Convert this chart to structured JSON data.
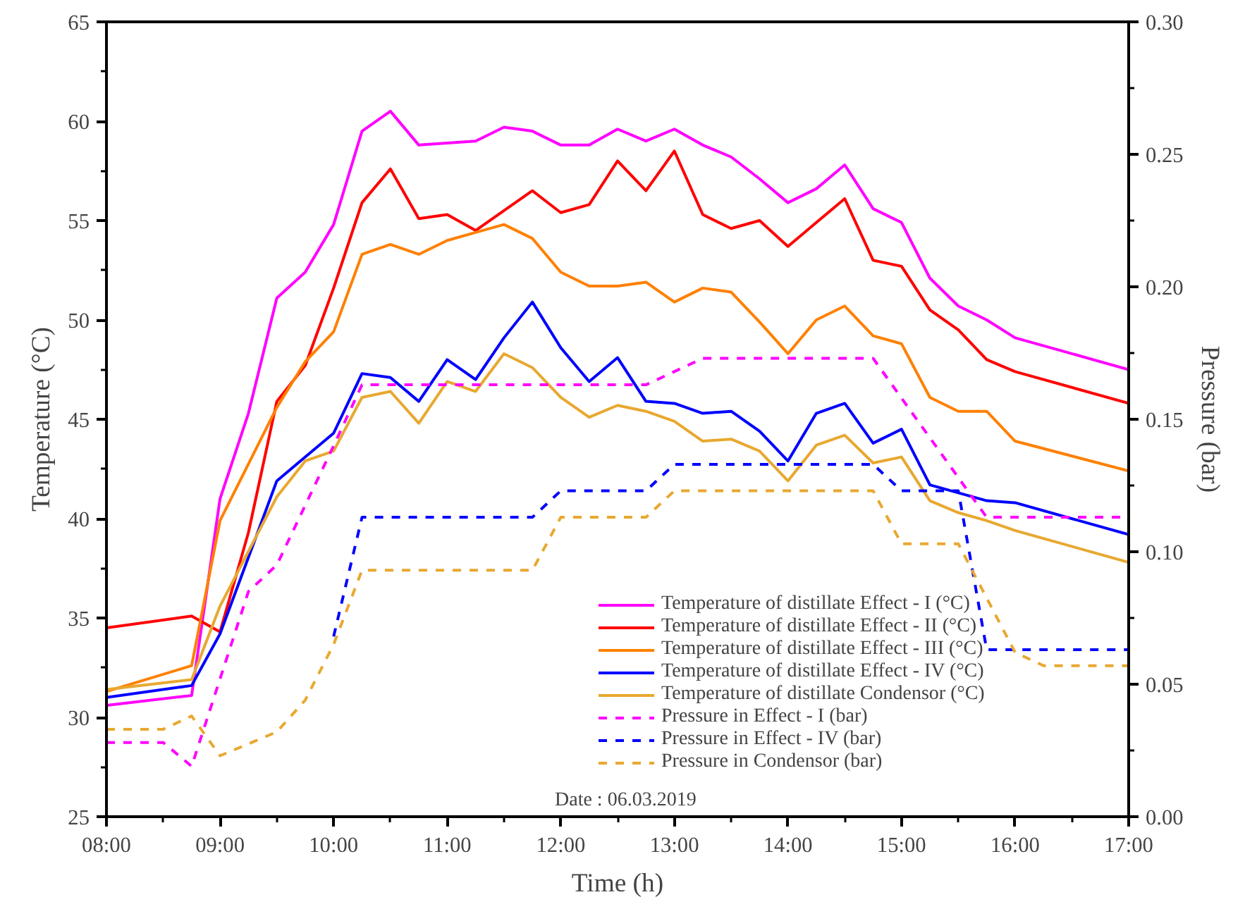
{
  "chart_data": {
    "type": "line",
    "xlabel": "Time (h)",
    "ylabel": "Temperature (°C)",
    "y2label": "Pressure (bar)",
    "xlim": [
      8,
      17
    ],
    "xticks": [
      {
        "value": 8,
        "label": "08:00"
      },
      {
        "value": 9,
        "label": "09:00"
      },
      {
        "value": 10,
        "label": "10:00"
      },
      {
        "value": 11,
        "label": "11:00"
      },
      {
        "value": 12,
        "label": "12:00"
      },
      {
        "value": 13,
        "label": "13:00"
      },
      {
        "value": 14,
        "label": "14:00"
      },
      {
        "value": 15,
        "label": "15:00"
      },
      {
        "value": 16,
        "label": "16:00"
      },
      {
        "value": 17,
        "label": "17:00"
      }
    ],
    "ylim": [
      25,
      65
    ],
    "yticks": [
      25,
      30,
      35,
      40,
      45,
      50,
      55,
      60,
      65
    ],
    "y2lim": [
      0,
      0.3
    ],
    "y2ticks": [
      {
        "value": 0,
        "label": "0.00"
      },
      {
        "value": 0.05,
        "label": "0.05"
      },
      {
        "value": 0.1,
        "label": "0.10"
      },
      {
        "value": 0.15,
        "label": "0.15"
      },
      {
        "value": 0.2,
        "label": "0.20"
      },
      {
        "value": 0.25,
        "label": "0.25"
      },
      {
        "value": 0.3,
        "label": "0.30"
      }
    ],
    "grid": false,
    "legend": "bottom right",
    "marker": "none",
    "annotations": [
      "Date : 06.03.2019"
    ],
    "series": [
      {
        "name": "Temperature of distillate Effect - I (°C)",
        "color": "#ff00ff",
        "line_style": "solid",
        "x": [
          8,
          8.75,
          9,
          9.25,
          9.5,
          9.75,
          10,
          10.25,
          10.5,
          10.75,
          11,
          11.25,
          11.5,
          11.75,
          12,
          12.25,
          12.5,
          12.75,
          13,
          13.25,
          13.5,
          13.75,
          14,
          14.25,
          14.5,
          14.75,
          15,
          15.25,
          15.5,
          15.75,
          16,
          17
        ],
        "values": [
          30.6,
          31.1,
          41,
          45.3,
          51.1,
          52.4,
          54.8,
          59.5,
          60.5,
          58.8,
          58.9,
          59.0,
          59.7,
          59.5,
          58.8,
          58.8,
          59.6,
          59.0,
          59.6,
          58.8,
          58.2,
          57.1,
          55.9,
          56.6,
          57.8,
          55.6,
          54.9,
          52.1,
          50.7,
          50.0,
          49.1,
          47.5
        ]
      },
      {
        "name": "Temperature of distillate Effect - II (°C)",
        "color": "#ff0000",
        "line_style": "solid",
        "x": [
          8,
          8.75,
          9,
          9.25,
          9.5,
          9.75,
          10,
          10.25,
          10.5,
          10.75,
          11,
          11.25,
          11.5,
          11.75,
          12,
          12.25,
          12.5,
          12.75,
          13,
          13.25,
          13.5,
          13.75,
          14,
          14.25,
          14.5,
          14.75,
          15,
          15.25,
          15.5,
          15.75,
          16,
          17
        ],
        "values": [
          34.5,
          35.1,
          34.3,
          39.3,
          45.9,
          47.7,
          51.6,
          55.9,
          57.6,
          55.1,
          55.3,
          54.5,
          55.5,
          56.5,
          55.4,
          55.8,
          58.0,
          56.5,
          58.5,
          55.3,
          54.6,
          55.0,
          53.7,
          54.9,
          56.1,
          53.0,
          52.7,
          50.5,
          49.5,
          48.0,
          47.4,
          45.8
        ]
      },
      {
        "name": "Temperature of distillate Effect - III (°C)",
        "color": "#ff8000",
        "line_style": "solid",
        "x": [
          8,
          8.75,
          9,
          9.5,
          9.75,
          10,
          10.25,
          10.5,
          10.75,
          11,
          11.25,
          11.5,
          11.75,
          12,
          12.25,
          12.5,
          12.75,
          13,
          13.25,
          13.5,
          13.75,
          14,
          14.25,
          14.5,
          14.75,
          15,
          15.25,
          15.5,
          15.75,
          16,
          17
        ],
        "values": [
          31.3,
          32.6,
          39.9,
          45.6,
          47.9,
          49.4,
          53.3,
          53.8,
          53.3,
          54.0,
          54.4,
          54.8,
          54.1,
          52.4,
          51.7,
          51.7,
          51.9,
          50.9,
          51.6,
          51.4,
          49.9,
          48.3,
          50.0,
          50.7,
          49.2,
          48.8,
          46.1,
          45.4,
          45.4,
          43.9,
          42.4
        ]
      },
      {
        "name": "Temperature of distillate Effect - IV (°C)",
        "color": "#0000ff",
        "line_style": "solid",
        "x": [
          8,
          8.75,
          9,
          9.5,
          9.75,
          10,
          10.25,
          10.5,
          10.75,
          11,
          11.25,
          11.5,
          11.75,
          12,
          12.25,
          12.5,
          12.75,
          13,
          13.25,
          13.5,
          13.75,
          14,
          14.25,
          14.5,
          14.75,
          15,
          15.25,
          15.5,
          15.75,
          16,
          17
        ],
        "values": [
          31.0,
          31.6,
          34.2,
          41.9,
          43.1,
          44.3,
          47.3,
          47.1,
          45.9,
          48.0,
          47.0,
          49.1,
          50.9,
          48.6,
          46.9,
          48.1,
          45.9,
          45.8,
          45.3,
          45.4,
          44.4,
          42.9,
          45.3,
          45.8,
          43.8,
          44.5,
          41.7,
          41.3,
          40.9,
          40.8,
          39.2
        ]
      },
      {
        "name": "Temperature of distillate Condensor (°C)",
        "color": "#e8a830",
        "line_style": "solid",
        "x": [
          8,
          8.75,
          9,
          9.5,
          9.75,
          10,
          10.25,
          10.5,
          10.75,
          11,
          11.25,
          11.5,
          11.75,
          12,
          12.25,
          12.5,
          12.75,
          13,
          13.25,
          13.5,
          13.75,
          14,
          14.25,
          14.5,
          14.75,
          15,
          15.25,
          15.5,
          15.75,
          16,
          17
        ],
        "values": [
          31.4,
          31.9,
          35.6,
          41.1,
          42.9,
          43.4,
          46.1,
          46.4,
          44.8,
          46.9,
          46.4,
          48.3,
          47.6,
          46.1,
          45.1,
          45.7,
          45.4,
          44.9,
          43.9,
          44.0,
          43.4,
          41.9,
          43.7,
          44.2,
          42.8,
          43.1,
          40.9,
          40.3,
          39.9,
          39.4,
          37.8
        ]
      },
      {
        "name": "Pressure in Effect - I (bar)",
        "color": "#ff00ff",
        "line_style": "dashed",
        "axis": "y2",
        "x": [
          8,
          8.5,
          8.75,
          9.25,
          9.5,
          10,
          10.25,
          12.75,
          13.25,
          14.75,
          15.75,
          17
        ],
        "values": [
          0.028,
          0.028,
          0.019,
          0.085,
          0.095,
          0.14,
          0.163,
          0.163,
          0.173,
          0.173,
          0.113,
          0.113
        ]
      },
      {
        "name": "Pressure in Effect - IV (bar)",
        "color": "#0000ff",
        "line_style": "dashed",
        "axis": "y2",
        "x": [
          10,
          10.25,
          11.75,
          12,
          12.75,
          13,
          14.75,
          15,
          15.5,
          15.75,
          17
        ],
        "values": [
          0.068,
          0.113,
          0.113,
          0.123,
          0.123,
          0.133,
          0.133,
          0.123,
          0.123,
          0.063,
          0.063
        ]
      },
      {
        "name": "Pressure in Condensor (bar)",
        "color": "#e8a830",
        "line_style": "dashed",
        "axis": "y2",
        "x": [
          8,
          8.5,
          8.75,
          9,
          9.5,
          9.75,
          10,
          10.25,
          11.75,
          12,
          12.75,
          13,
          14.75,
          15,
          15.5,
          16,
          16.25,
          17
        ],
        "values": [
          0.033,
          0.033,
          0.038,
          0.023,
          0.032,
          0.044,
          0.065,
          0.093,
          0.093,
          0.113,
          0.113,
          0.123,
          0.123,
          0.103,
          0.103,
          0.062,
          0.057,
          0.057
        ]
      }
    ]
  }
}
